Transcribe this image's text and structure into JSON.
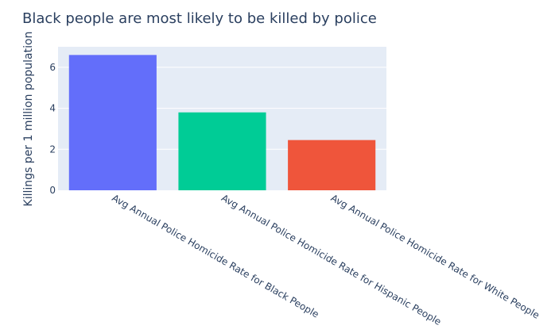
{
  "chart_data": {
    "type": "bar",
    "title": "Black people are most likely to be killed by police",
    "xlabel": "",
    "ylabel": "Killings per 1 million population",
    "categories": [
      "Avg Annual Police Homicide Rate for Black People",
      "Avg Annual Police Homicide Rate for Hispanic People",
      "Avg Annual Police Homicide Rate for White People"
    ],
    "values": [
      6.6,
      3.8,
      2.45
    ],
    "bar_colors": [
      "#636efa",
      "#00cc96",
      "#ef553b"
    ],
    "ylim": [
      0,
      7
    ],
    "yticks": [
      0,
      2,
      4,
      6
    ],
    "grid": true,
    "legend": "none",
    "plot_background": "#e5ecf6",
    "text_color": "#2a3f5f"
  }
}
